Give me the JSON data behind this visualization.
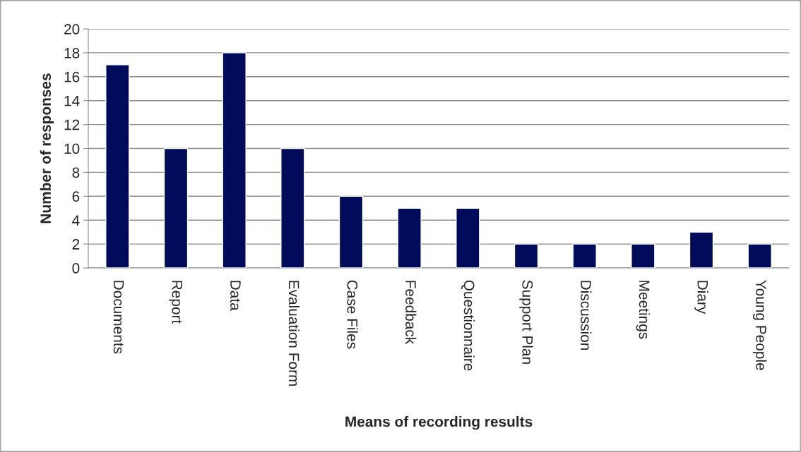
{
  "chart_data": {
    "type": "bar",
    "xlabel": "Means of recording results",
    "ylabel": "Number of responses",
    "categories": [
      "Documents",
      "Report",
      "Data",
      "Evaluation Form",
      "Case Files",
      "Feedback",
      "Questionnaire",
      "Support Plan",
      "Discussion",
      "Meetings",
      "Diary",
      "Young People"
    ],
    "values": [
      17,
      10,
      18,
      10,
      6,
      5,
      5,
      2,
      2,
      2,
      3,
      2
    ],
    "color": "#000c5a",
    "ylim": [
      0,
      20
    ],
    "yticks": [
      0,
      2,
      4,
      6,
      8,
      10,
      12,
      14,
      16,
      18,
      20
    ],
    "grid": "y",
    "legend": false
  }
}
